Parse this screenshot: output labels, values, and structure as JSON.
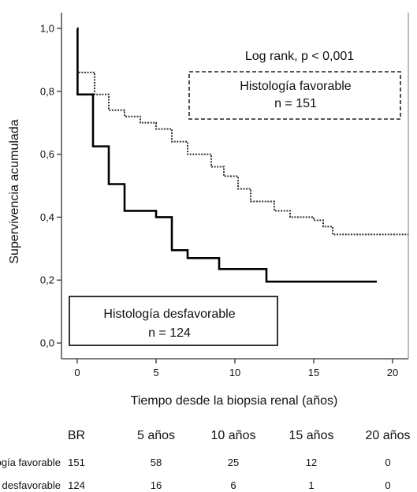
{
  "chart_data": {
    "type": "line",
    "title": "",
    "xlabel": "Tiempo desde la biopsia renal (años)",
    "ylabel": "Supervivencia acumulada",
    "xlim": [
      -1,
      21
    ],
    "ylim": [
      -0.05,
      1.05
    ],
    "x_ticks": [
      0,
      5,
      10,
      15,
      20
    ],
    "x_tick_labels": [
      "0",
      "5",
      "10",
      "15",
      "20"
    ],
    "y_ticks": [
      0.0,
      0.2,
      0.4,
      0.6,
      0.8,
      1.0
    ],
    "y_tick_labels": [
      "0,0",
      "0,2",
      "0,4",
      "0,6",
      "0,8",
      "1,0"
    ],
    "grid": false,
    "annotation": "Log rank, p < 0,001",
    "series": [
      {
        "name": "Histología favorable",
        "n_label": "n = 151",
        "style": "dotted",
        "color": "#333333",
        "steps": [
          [
            0,
            1.0
          ],
          [
            0.02,
            0.86
          ],
          [
            1.1,
            0.79
          ],
          [
            2,
            0.74
          ],
          [
            3,
            0.72
          ],
          [
            4,
            0.7
          ],
          [
            5,
            0.68
          ],
          [
            6,
            0.64
          ],
          [
            7,
            0.6
          ],
          [
            8.5,
            0.56
          ],
          [
            9.3,
            0.53
          ],
          [
            10.2,
            0.49
          ],
          [
            11,
            0.45
          ],
          [
            12.5,
            0.42
          ],
          [
            13.5,
            0.4
          ],
          [
            15,
            0.39
          ],
          [
            15.6,
            0.37
          ],
          [
            16.2,
            0.345
          ],
          [
            21,
            0.345
          ]
        ]
      },
      {
        "name": "Histología desfavorable",
        "n_label": "n = 124",
        "style": "solid",
        "color": "#000000",
        "steps": [
          [
            0,
            1.0
          ],
          [
            0.02,
            0.79
          ],
          [
            1,
            0.625
          ],
          [
            2,
            0.505
          ],
          [
            3,
            0.42
          ],
          [
            5,
            0.4
          ],
          [
            6,
            0.295
          ],
          [
            7,
            0.27
          ],
          [
            9,
            0.235
          ],
          [
            12,
            0.195
          ],
          [
            19,
            0.195
          ]
        ]
      }
    ]
  },
  "risk_table": {
    "headers": [
      "BR",
      "5 años",
      "10 años",
      "15 años",
      "20 años"
    ],
    "rows": [
      {
        "label": "Histología favorable",
        "values": [
          "151",
          "58",
          "25",
          "12",
          "0"
        ]
      },
      {
        "label": "Histología desfavorable",
        "values": [
          "124",
          "16",
          "6",
          "1",
          "0"
        ]
      }
    ]
  }
}
